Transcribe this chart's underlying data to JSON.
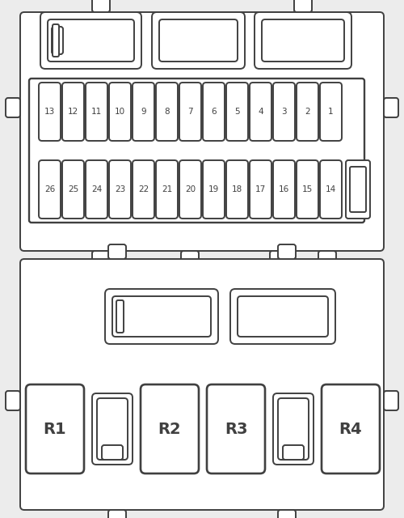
{
  "bg_color": "#ececec",
  "line_color": "#404040",
  "fill_color": "#ffffff",
  "lw": 1.4,
  "fuse_row1": [
    13,
    12,
    11,
    10,
    9,
    8,
    7,
    6,
    5,
    4,
    3,
    2,
    1
  ],
  "fuse_row2": [
    26,
    25,
    24,
    23,
    22,
    21,
    20,
    19,
    18,
    17,
    16,
    15,
    14
  ],
  "relay_labels": [
    "R1",
    "R2",
    "R3",
    "R4"
  ]
}
